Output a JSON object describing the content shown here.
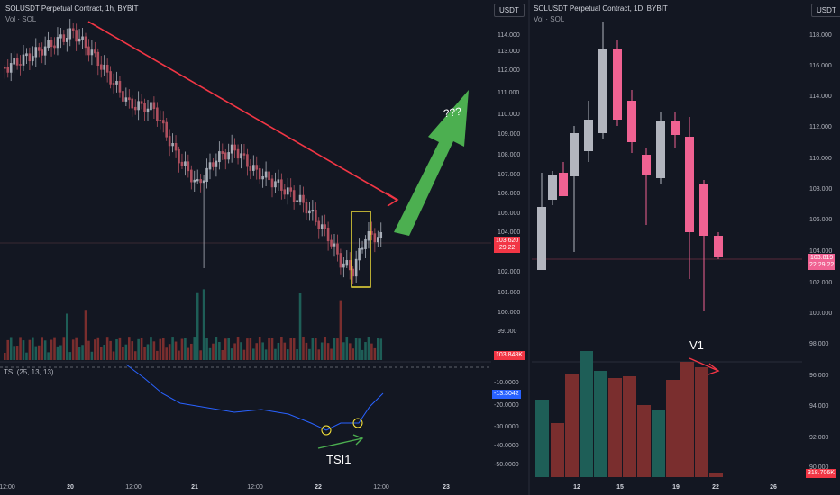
{
  "left_panel": {
    "title": "SOLUSDT Perpetual Contract, 1h, BYBIT",
    "vol_label": "Vol · SOL",
    "currency_button": "USDT",
    "y_ticks": [
      "114.000",
      "113.000",
      "112.000",
      "111.000",
      "110.000",
      "109.000",
      "108.000",
      "107.000",
      "106.000",
      "105.000",
      "104.000",
      "102.000",
      "101.000",
      "100.000",
      "99.000"
    ],
    "x_ticks": [
      "12:00",
      "20",
      "12:00",
      "21",
      "12:00",
      "22",
      "12:00",
      "23"
    ],
    "price_tag": {
      "value": "103.620",
      "countdown": "29:22"
    },
    "volume_tag": "103.848K",
    "tsi": {
      "label": "TSI (25, 13, 13)",
      "value_tag": "-13.3042",
      "y_ticks": [
        "-10.0000",
        "-20.0000",
        "-30.0000",
        "-40.0000",
        "-50.0000"
      ],
      "annotation": "TSI1"
    },
    "question_annotation": "???"
  },
  "right_panel": {
    "title": "SOLUSDT Perpetual Contract, 1D, BYBIT",
    "vol_label": "Vol · SOL",
    "currency_button": "USDT",
    "y_ticks": [
      "118.000",
      "116.000",
      "114.000",
      "112.000",
      "110.000",
      "108.000",
      "106.000",
      "104.000",
      "102.000",
      "100.000",
      "98.000",
      "96.000",
      "94.000",
      "92.000",
      "90.000"
    ],
    "x_ticks": [
      "12",
      "15",
      "19",
      "22",
      "26"
    ],
    "price_tag": {
      "value": "103.819",
      "countdown": "22:29:22"
    },
    "volume_tag": "318.706K",
    "annotation": "V1"
  },
  "colors": {
    "background": "#131722",
    "bull": "#26a69a",
    "bear": "#ef5350",
    "bull_candle_1d": "#b2b5be",
    "bear_candle_1d": "#f06292",
    "bear_candle_1h": "#b0505f",
    "bull_candle_1h": "#a8aeb8",
    "vol_up": "#1e5e57",
    "vol_down": "#7a2e2e",
    "trend_line": "#f23645",
    "green_arrow": "#4caf50",
    "tsi_line": "#2962ff",
    "highlight_box": "#ffeb3b"
  }
}
